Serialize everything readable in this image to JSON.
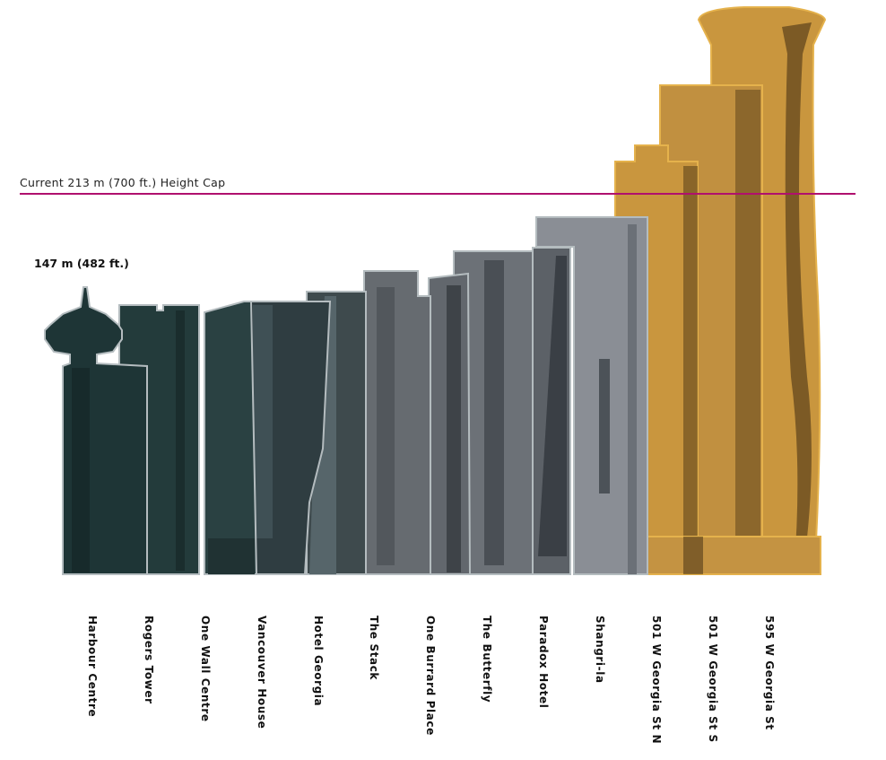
{
  "height_cap": {
    "label": "Current 213 m (700 ft.) Height Cap",
    "height_m": 213,
    "height_ft": 700,
    "color": "#b0106e"
  },
  "reference": {
    "label": "147 m (482 ft.)",
    "height_m": 147,
    "height_ft": 482
  },
  "colors": {
    "existing_dark": "#20393a",
    "existing_mid": "#4a5658",
    "existing_light": "#7d8187",
    "proposed": "#c9963e",
    "proposed_shade": "#3c2a10",
    "outline_existing": "#b4bcbf",
    "outline_proposed": "#e5b24c"
  },
  "buildings": [
    {
      "name": "Harbour Centre"
    },
    {
      "name": "Rogers Tower"
    },
    {
      "name": "One Wall Centre"
    },
    {
      "name": "Vancouver House"
    },
    {
      "name": "Hotel Georgia"
    },
    {
      "name": "The Stack"
    },
    {
      "name": "One Burrard Place"
    },
    {
      "name": "The Butterfly"
    },
    {
      "name": "Paradox Hotel"
    },
    {
      "name": "Shangri-la"
    },
    {
      "name": "501 W Georgia St N"
    },
    {
      "name": "501 W Georgia St S"
    },
    {
      "name": "595 W Georgia St"
    }
  ]
}
